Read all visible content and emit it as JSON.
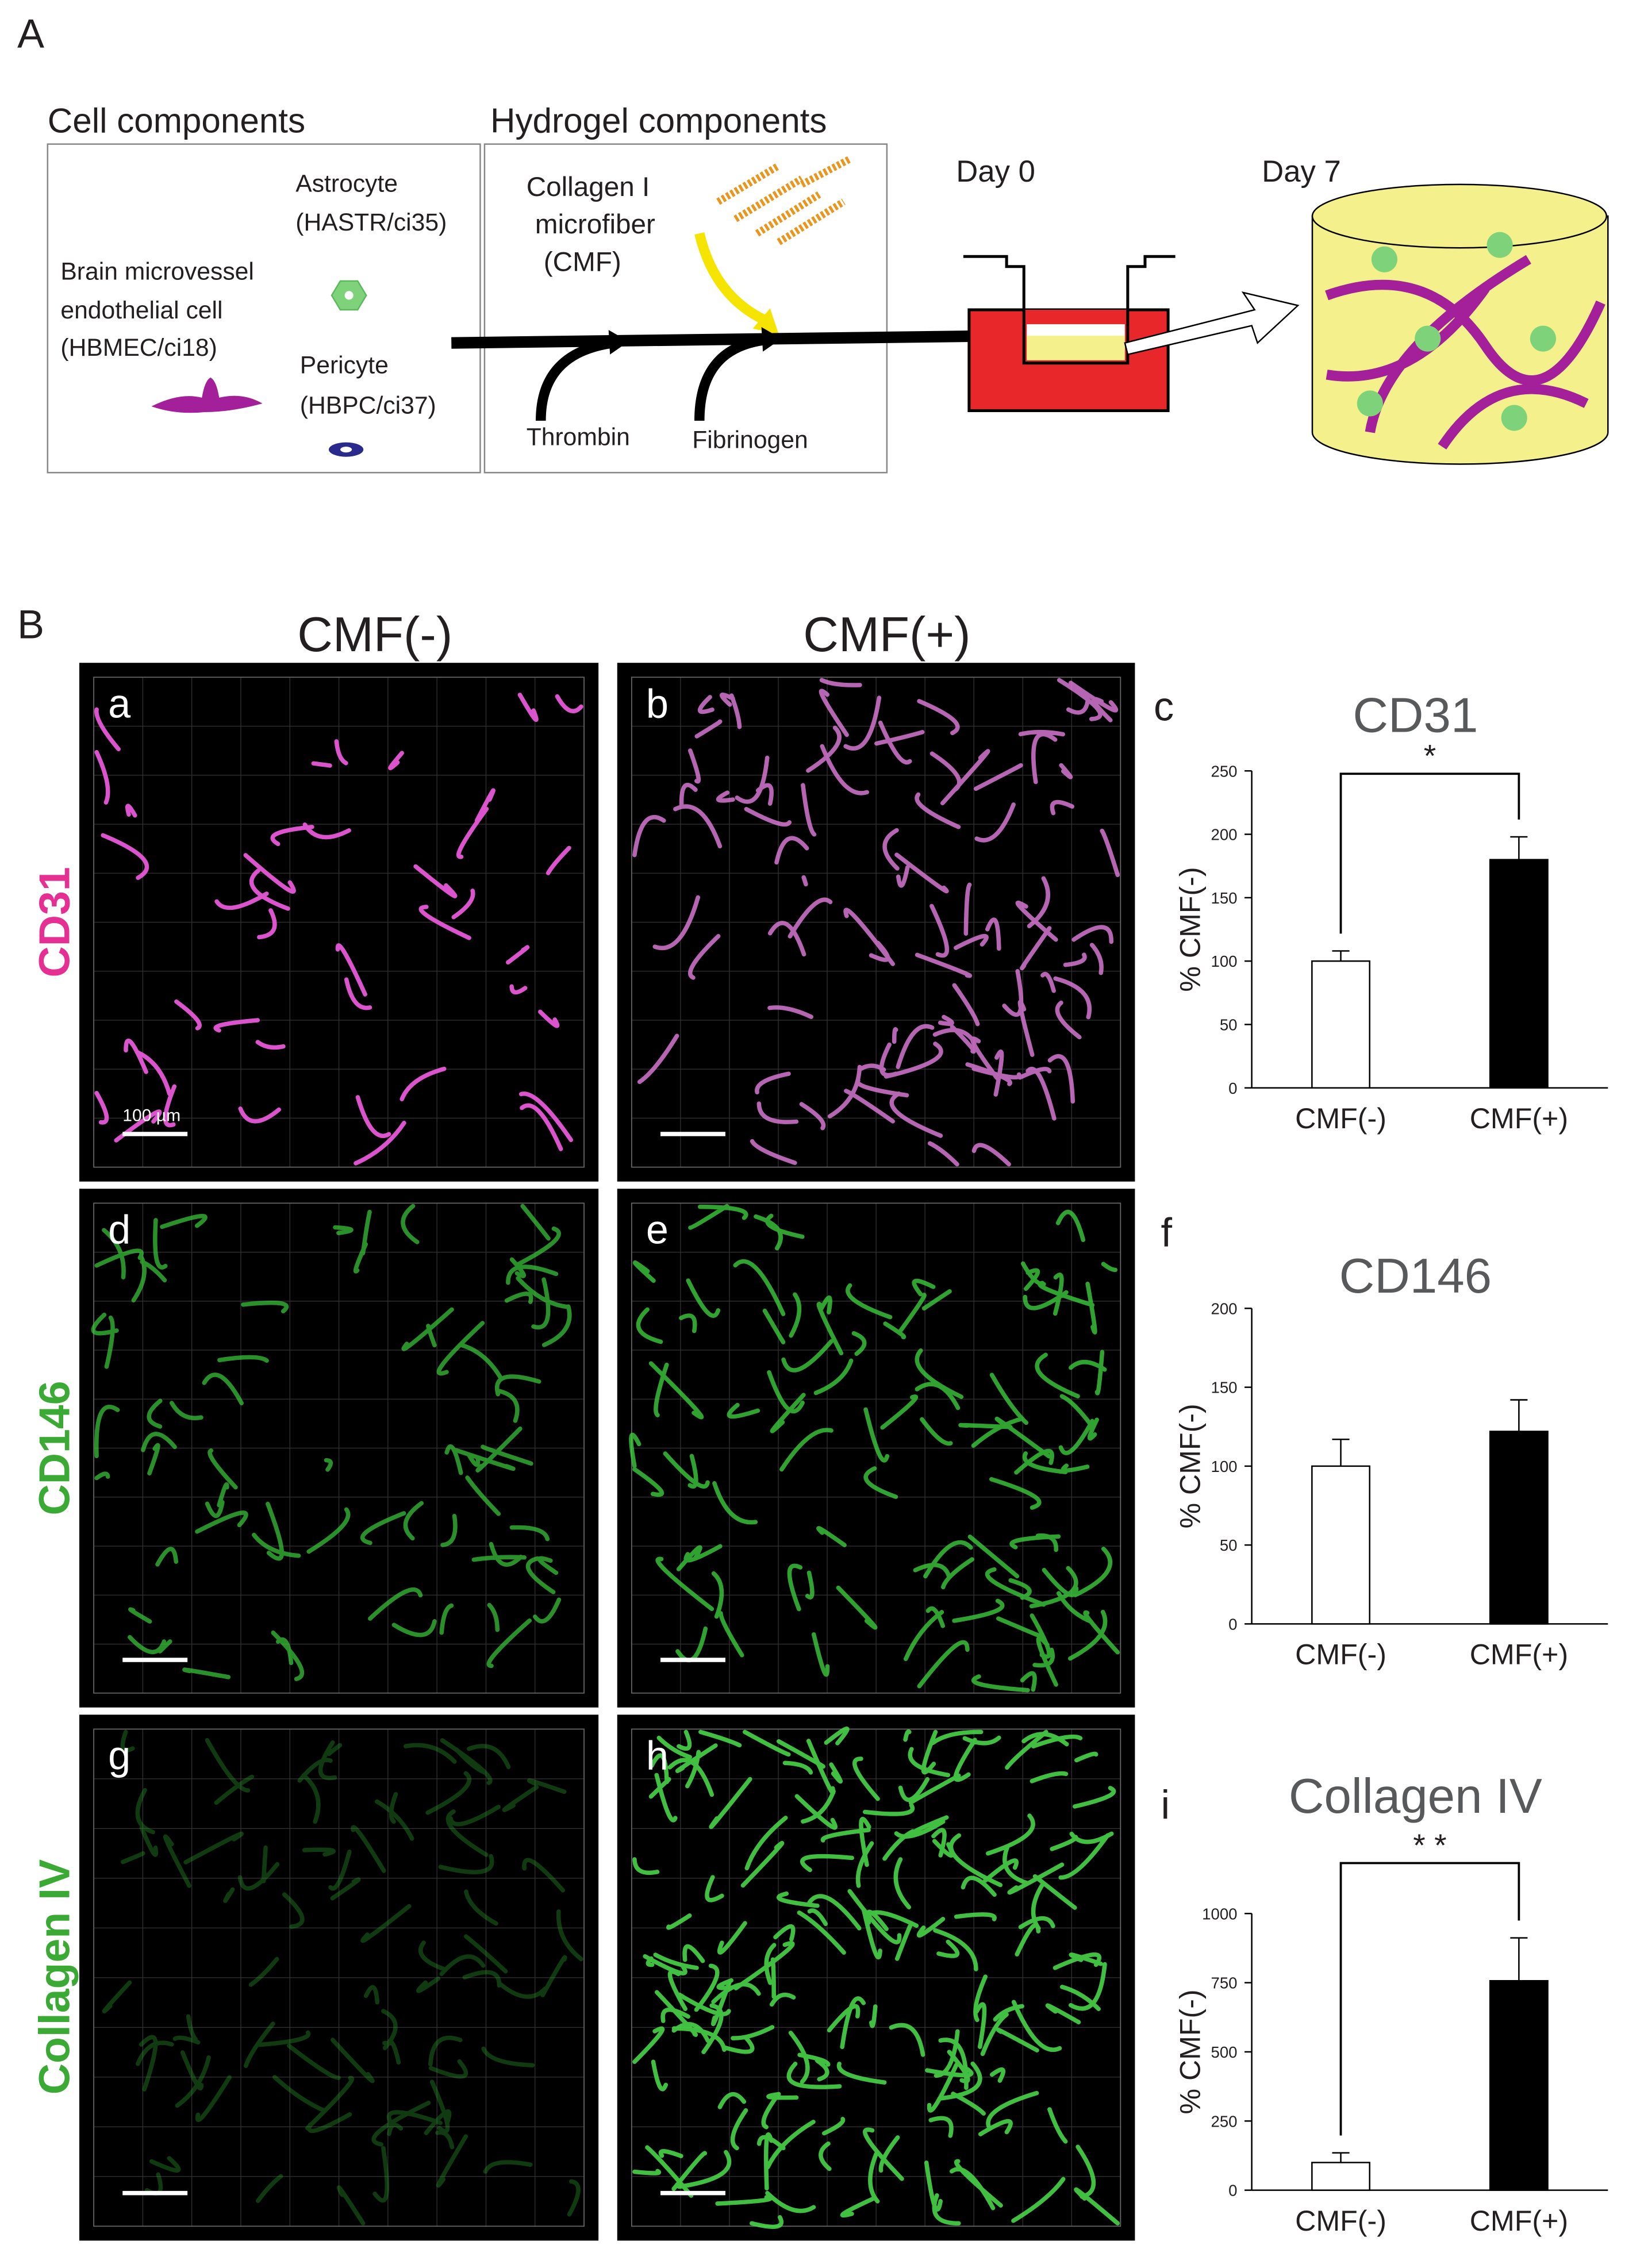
{
  "figure_labels": {
    "a": "A",
    "b": "B"
  },
  "diagram": {
    "cell_box_title": "Cell components",
    "hydrogel_box_title": "Hydrogel components",
    "astrocyte": [
      "Astrocyte",
      "(HASTR/ci35)"
    ],
    "endothelial": [
      "Brain microvessel",
      "endothelial cell",
      "(HBMEC/ci18)"
    ],
    "pericyte": [
      "Pericyte",
      "(HBPC/ci37)"
    ],
    "collagen": [
      "Collagen I",
      "microfiber",
      "(CMF)"
    ],
    "thrombin": "Thrombin",
    "fibrinogen": "Fibrinogen",
    "day0": "Day 0",
    "day7": "Day 7"
  },
  "images": {
    "column_titles": [
      "CMF(-)",
      "CMF(+)"
    ],
    "row_labels": [
      "CD31",
      "CD146",
      "Collagen IV"
    ],
    "panel_letters": [
      "a",
      "b",
      "d",
      "e",
      "g",
      "h"
    ],
    "scale_bar": "100 µm"
  },
  "chart_data": [
    {
      "type": "bar",
      "panel": "c",
      "title": "CD31",
      "ylabel": "% CMF(-)",
      "categories": [
        "CMF(-)",
        "CMF(+)"
      ],
      "values": [
        100,
        180
      ],
      "errors": [
        8,
        18
      ],
      "colors": [
        "#ffffff",
        "#000000"
      ],
      "ylim": [
        0,
        250
      ],
      "yticks": [
        0,
        50,
        100,
        150,
        200,
        250
      ],
      "significance": "*"
    },
    {
      "type": "bar",
      "panel": "f",
      "title": "CD146",
      "ylabel": "% CMF(-)",
      "categories": [
        "CMF(-)",
        "CMF(+)"
      ],
      "values": [
        100,
        122
      ],
      "errors": [
        17,
        20
      ],
      "colors": [
        "#ffffff",
        "#000000"
      ],
      "ylim": [
        0,
        200
      ],
      "yticks": [
        0,
        50,
        100,
        150,
        200
      ]
    },
    {
      "type": "bar",
      "panel": "i",
      "title": "Collagen IV",
      "ylabel": "% CMF(-)",
      "categories": [
        "CMF(-)",
        "CMF(+)"
      ],
      "values": [
        100,
        757
      ],
      "errors": [
        35,
        155
      ],
      "colors": [
        "#ffffff",
        "#000000"
      ],
      "ylim": [
        0,
        1000
      ],
      "yticks": [
        0,
        250,
        500,
        750,
        1000
      ],
      "significance": "* *"
    }
  ]
}
